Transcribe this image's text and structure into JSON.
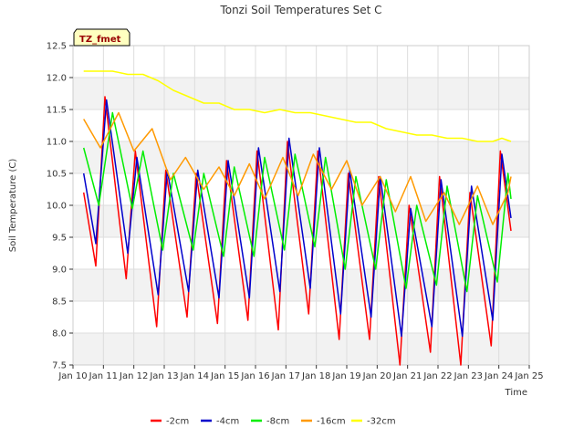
{
  "chart_data": {
    "type": "line",
    "title": "Tonzi Soil Temperatures Set C",
    "xlabel": "Time",
    "ylabel": "Soil Temperature (C)",
    "annotation": "TZ_fmet",
    "xlim": [
      10,
      25
    ],
    "ylim": [
      7.5,
      12.5
    ],
    "x_ticks": [
      10,
      11,
      12,
      13,
      14,
      15,
      16,
      17,
      18,
      19,
      20,
      21,
      22,
      23,
      24,
      25
    ],
    "x_tick_labels": [
      "Jan 10",
      "Jan 11",
      "Jan 12",
      "Jan 13",
      "Jan 14",
      "Jan 15",
      "Jan 16",
      "Jan 17",
      "Jan 18",
      "Jan 19",
      "Jan 20",
      "Jan 21",
      "Jan 22",
      "Jan 23",
      "Jan 24",
      "Jan 25"
    ],
    "y_ticks": [
      7.5,
      8.0,
      8.5,
      9.0,
      9.5,
      10.0,
      10.5,
      11.0,
      11.5,
      12.0,
      12.5
    ],
    "y_tick_labels": [
      "7.5",
      "8.0",
      "8.5",
      "9.0",
      "9.5",
      "10.0",
      "10.5",
      "11.0",
      "11.5",
      "12.0",
      "12.5"
    ],
    "grid": true,
    "legend_position": "bottom",
    "series": [
      {
        "name": "-2cm",
        "color": "#ff0000",
        "points": [
          [
            10.35,
            10.2
          ],
          [
            10.75,
            9.05
          ],
          [
            11.05,
            11.7
          ],
          [
            11.75,
            8.85
          ],
          [
            12.05,
            10.85
          ],
          [
            12.75,
            8.1
          ],
          [
            13.05,
            10.55
          ],
          [
            13.75,
            8.25
          ],
          [
            14.05,
            10.5
          ],
          [
            14.75,
            8.15
          ],
          [
            15.05,
            10.7
          ],
          [
            15.75,
            8.2
          ],
          [
            16.05,
            10.85
          ],
          [
            16.75,
            8.05
          ],
          [
            17.05,
            11.0
          ],
          [
            17.75,
            8.3
          ],
          [
            18.05,
            10.85
          ],
          [
            18.75,
            7.9
          ],
          [
            19.05,
            10.5
          ],
          [
            19.75,
            7.9
          ],
          [
            20.05,
            10.45
          ],
          [
            20.75,
            7.5
          ],
          [
            21.05,
            10.0
          ],
          [
            21.75,
            7.7
          ],
          [
            22.05,
            10.45
          ],
          [
            22.75,
            7.5
          ],
          [
            23.05,
            10.2
          ],
          [
            23.75,
            7.8
          ],
          [
            24.05,
            10.85
          ],
          [
            24.4,
            9.6
          ]
        ]
      },
      {
        "name": "-4cm",
        "color": "#0000cc",
        "points": [
          [
            10.35,
            10.5
          ],
          [
            10.75,
            9.4
          ],
          [
            11.1,
            11.65
          ],
          [
            11.8,
            9.25
          ],
          [
            12.1,
            10.75
          ],
          [
            12.8,
            8.6
          ],
          [
            13.1,
            10.55
          ],
          [
            13.8,
            8.65
          ],
          [
            14.1,
            10.55
          ],
          [
            14.8,
            8.55
          ],
          [
            15.1,
            10.7
          ],
          [
            15.8,
            8.55
          ],
          [
            16.1,
            10.9
          ],
          [
            16.8,
            8.65
          ],
          [
            17.1,
            11.05
          ],
          [
            17.8,
            8.7
          ],
          [
            18.1,
            10.9
          ],
          [
            18.8,
            8.3
          ],
          [
            19.1,
            10.55
          ],
          [
            19.8,
            8.25
          ],
          [
            20.1,
            10.45
          ],
          [
            20.8,
            7.95
          ],
          [
            21.1,
            9.95
          ],
          [
            21.8,
            8.1
          ],
          [
            22.1,
            10.4
          ],
          [
            22.8,
            7.95
          ],
          [
            23.1,
            10.3
          ],
          [
            23.8,
            8.2
          ],
          [
            24.1,
            10.8
          ],
          [
            24.4,
            9.8
          ]
        ]
      },
      {
        "name": "-8cm",
        "color": "#00ee00",
        "points": [
          [
            10.35,
            10.9
          ],
          [
            10.85,
            10.0
          ],
          [
            11.3,
            11.45
          ],
          [
            11.95,
            9.95
          ],
          [
            12.3,
            10.85
          ],
          [
            12.95,
            9.3
          ],
          [
            13.3,
            10.5
          ],
          [
            13.95,
            9.3
          ],
          [
            14.3,
            10.5
          ],
          [
            14.95,
            9.2
          ],
          [
            15.3,
            10.6
          ],
          [
            15.95,
            9.2
          ],
          [
            16.3,
            10.75
          ],
          [
            16.95,
            9.3
          ],
          [
            17.3,
            10.8
          ],
          [
            17.95,
            9.35
          ],
          [
            18.3,
            10.75
          ],
          [
            18.95,
            9.0
          ],
          [
            19.3,
            10.45
          ],
          [
            19.95,
            9.0
          ],
          [
            20.3,
            10.4
          ],
          [
            20.95,
            8.7
          ],
          [
            21.3,
            10.0
          ],
          [
            21.95,
            8.75
          ],
          [
            22.3,
            10.3
          ],
          [
            22.95,
            8.65
          ],
          [
            23.3,
            10.15
          ],
          [
            23.95,
            8.8
          ],
          [
            24.3,
            10.5
          ],
          [
            24.4,
            10.1
          ]
        ]
      },
      {
        "name": "-16cm",
        "color": "#ff9900",
        "points": [
          [
            10.35,
            11.35
          ],
          [
            10.9,
            10.9
          ],
          [
            11.5,
            11.45
          ],
          [
            12.0,
            10.85
          ],
          [
            12.6,
            11.2
          ],
          [
            13.2,
            10.4
          ],
          [
            13.7,
            10.75
          ],
          [
            14.3,
            10.25
          ],
          [
            14.8,
            10.6
          ],
          [
            15.3,
            10.15
          ],
          [
            15.8,
            10.65
          ],
          [
            16.3,
            10.1
          ],
          [
            16.9,
            10.75
          ],
          [
            17.4,
            10.15
          ],
          [
            17.9,
            10.8
          ],
          [
            18.5,
            10.25
          ],
          [
            19.0,
            10.7
          ],
          [
            19.5,
            10.0
          ],
          [
            20.1,
            10.45
          ],
          [
            20.6,
            9.9
          ],
          [
            21.1,
            10.45
          ],
          [
            21.6,
            9.75
          ],
          [
            22.2,
            10.2
          ],
          [
            22.7,
            9.7
          ],
          [
            23.3,
            10.3
          ],
          [
            23.8,
            9.7
          ],
          [
            24.3,
            10.2
          ],
          [
            24.4,
            10.45
          ]
        ]
      },
      {
        "name": "-32cm",
        "color": "#ffff00",
        "points": [
          [
            10.35,
            12.1
          ],
          [
            10.8,
            12.1
          ],
          [
            11.3,
            12.1
          ],
          [
            11.8,
            12.05
          ],
          [
            12.3,
            12.05
          ],
          [
            12.8,
            11.95
          ],
          [
            13.3,
            11.8
          ],
          [
            13.8,
            11.7
          ],
          [
            14.3,
            11.6
          ],
          [
            14.8,
            11.6
          ],
          [
            15.3,
            11.5
          ],
          [
            15.8,
            11.5
          ],
          [
            16.3,
            11.45
          ],
          [
            16.8,
            11.5
          ],
          [
            17.3,
            11.45
          ],
          [
            17.8,
            11.45
          ],
          [
            18.3,
            11.4
          ],
          [
            18.8,
            11.35
          ],
          [
            19.3,
            11.3
          ],
          [
            19.8,
            11.3
          ],
          [
            20.3,
            11.2
          ],
          [
            20.8,
            11.15
          ],
          [
            21.3,
            11.1
          ],
          [
            21.8,
            11.1
          ],
          [
            22.3,
            11.05
          ],
          [
            22.8,
            11.05
          ],
          [
            23.3,
            11.0
          ],
          [
            23.8,
            11.0
          ],
          [
            24.1,
            11.05
          ],
          [
            24.4,
            11.0
          ]
        ]
      }
    ]
  }
}
